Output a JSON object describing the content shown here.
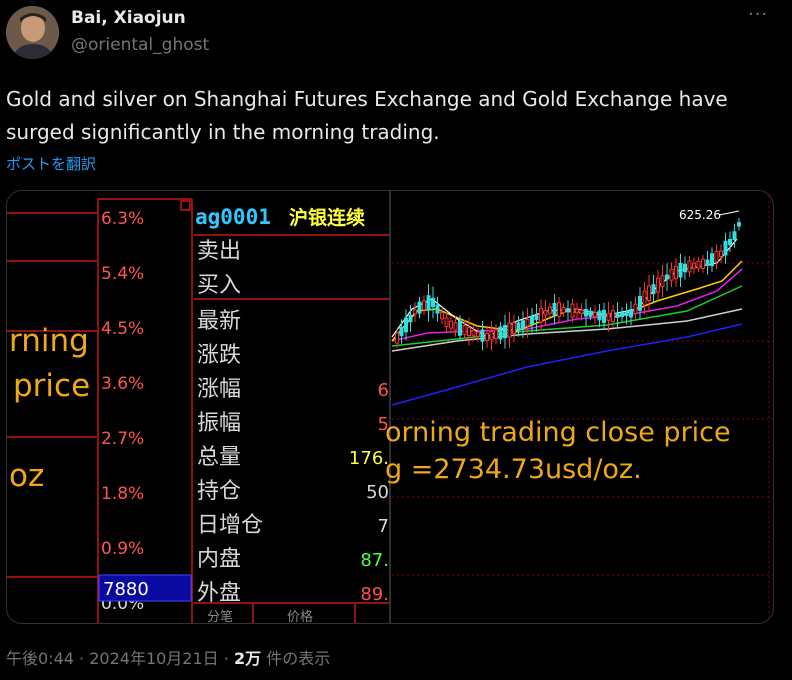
{
  "author": {
    "name": "Bai, Xiaojun",
    "handle": "@oriental_ghost"
  },
  "more_icon": "more-dots-icon",
  "tweet_text": "Gold and silver on Shanghai Futures Exchange and Gold Exchange have surged significantly in the morning trading.",
  "translate_link": "ポストを翻訳",
  "footer": {
    "time": "午後0:44",
    "separator": "·",
    "date": "2024年10月21日",
    "separator2": "·",
    "views_count": "2万",
    "views_label": "件の表示"
  },
  "media": {
    "pct_labels": [
      "6.3%",
      "5.4%",
      "4.5%",
      "3.6%",
      "2.7%",
      "1.8%",
      "0.9%",
      "0.0%"
    ],
    "volume_box": "7880",
    "left_overlay": [
      "rning",
      "price",
      "oz"
    ],
    "quote_symbol": "ag0001",
    "quote_name": "沪银连续",
    "quote_rows": [
      {
        "label": "卖出",
        "value": ""
      },
      {
        "label": "买入",
        "value": ""
      },
      {
        "label": "最新",
        "value": ""
      },
      {
        "label": "涨跌",
        "value": ""
      },
      {
        "label": "涨幅",
        "value": "6"
      },
      {
        "label": "振幅",
        "value": "5"
      },
      {
        "label": "总量",
        "value": "176."
      },
      {
        "label": "持仓",
        "value": "50"
      },
      {
        "label": "日增仓",
        "value": "7"
      },
      {
        "label": "内盘",
        "value": "87."
      },
      {
        "label": "外盘",
        "value": "89."
      }
    ],
    "bottom_tabs": [
      "分笔",
      "价格"
    ],
    "peak_label": "625.26",
    "overlay_line1": "orning trading close price",
    "overlay_line2": "g =2734.73usd/oz."
  }
}
